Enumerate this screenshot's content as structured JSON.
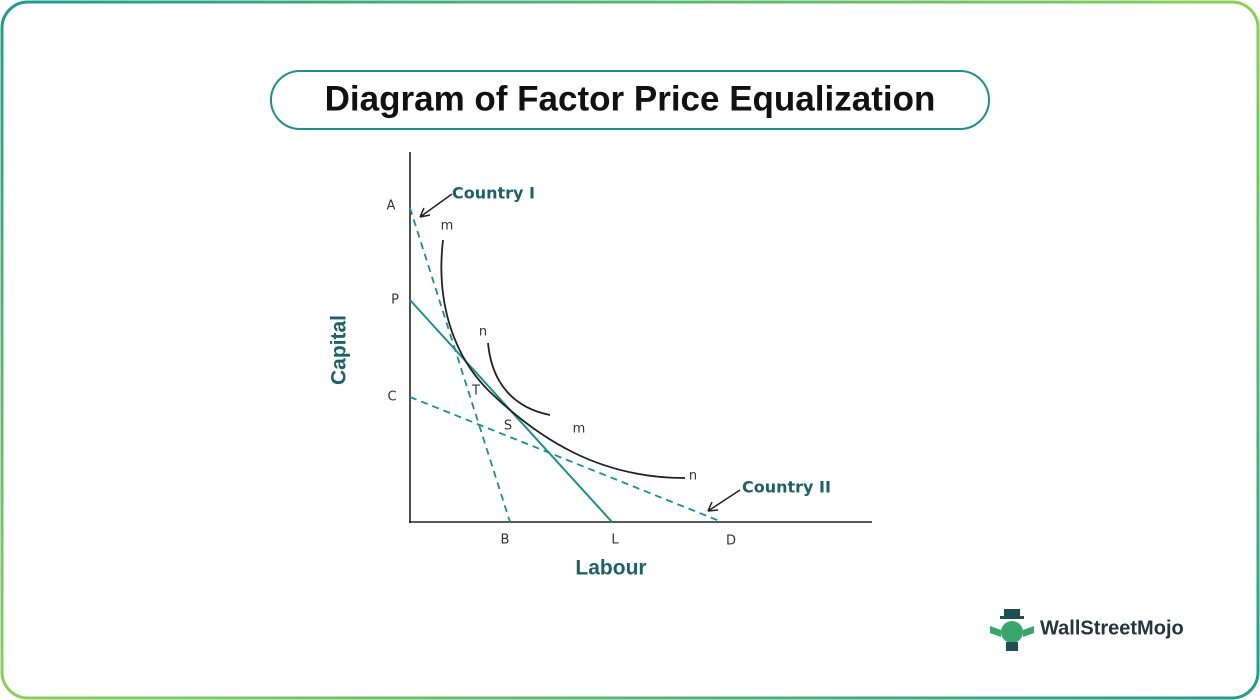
{
  "title": "Diagram of Factor Price Equalization",
  "axes": {
    "y_label": "Capital",
    "x_label": "Labour"
  },
  "points": {
    "A": "A",
    "P": "P",
    "C": "C",
    "B": "B",
    "L": "L",
    "D": "D",
    "T": "T",
    "S": "S"
  },
  "curve_labels": [
    "m",
    "n",
    "m",
    "n"
  ],
  "annotations": [
    "Country I",
    "Country II"
  ],
  "logo": "WallStreetMojo"
}
